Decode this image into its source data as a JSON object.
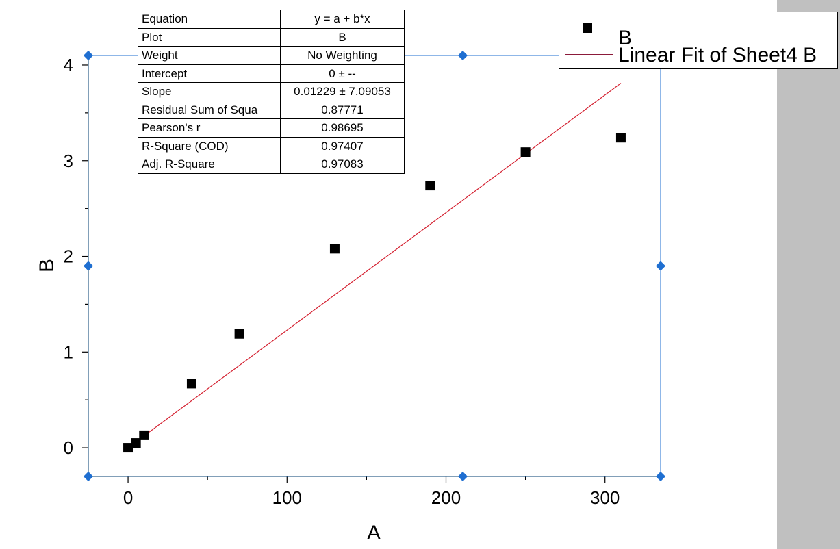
{
  "chart_data": {
    "type": "scatter",
    "xlabel": "A",
    "ylabel": "B",
    "xlim": [
      -25,
      335
    ],
    "ylim": [
      -0.3,
      4.1
    ],
    "x_ticks": [
      0,
      100,
      200,
      300
    ],
    "y_ticks": [
      0,
      1,
      2,
      3,
      4
    ],
    "grid": false,
    "legend_position": "top-right",
    "series": [
      {
        "name": "B",
        "x": [
          0,
          5,
          10,
          40,
          70,
          130,
          190,
          250,
          310
        ],
        "y": [
          0,
          0.05,
          0.13,
          0.67,
          1.19,
          2.08,
          2.74,
          3.09,
          3.24
        ]
      }
    ],
    "fit": {
      "name": "Linear Fit of Sheet4 B",
      "x_range": [
        0,
        310
      ],
      "intercept": 0,
      "slope": 0.01229
    },
    "colors": {
      "points": "#000000",
      "fit_line": "#d42030",
      "selection": "#1f6fd1",
      "axis": "#c8a040"
    }
  },
  "fit_table": [
    {
      "key": "Equation",
      "value": "y = a + b*x"
    },
    {
      "key": "Plot",
      "value": "B"
    },
    {
      "key": "Weight",
      "value": "No Weighting"
    },
    {
      "key": "Intercept",
      "value": "0 ± --"
    },
    {
      "key": "Slope",
      "value": "0.01229 ± 7.09053"
    },
    {
      "key": "Residual Sum of Squa",
      "value": "0.87771"
    },
    {
      "key": "Pearson's r",
      "value": "0.98695"
    },
    {
      "key": "R-Square (COD)",
      "value": "0.97407"
    },
    {
      "key": "Adj. R-Square",
      "value": "0.97083"
    }
  ],
  "legend": {
    "points_label": "B",
    "fit_label": "Linear Fit of Sheet4 B"
  }
}
